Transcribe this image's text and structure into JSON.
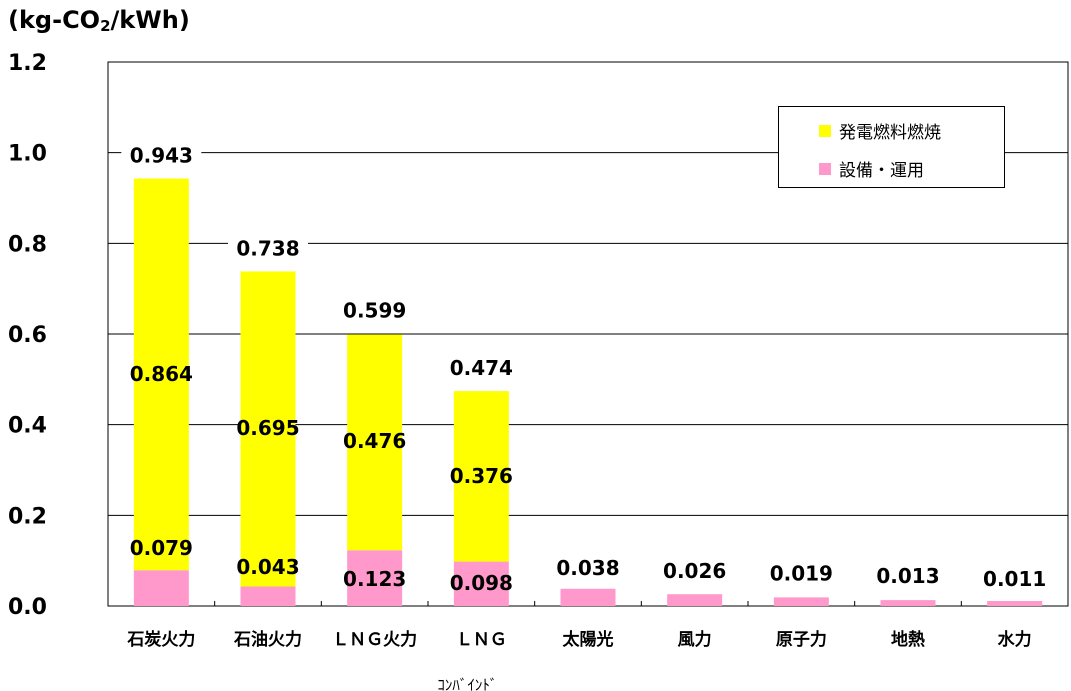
{
  "chart_data": {
    "type": "bar",
    "stacked": true,
    "title": "",
    "ylabel_prefix": "(kg-CO",
    "ylabel_sub": "2",
    "ylabel_suffix": "/kWh)",
    "xlabel": "",
    "ylim": [
      0,
      1.2
    ],
    "yticks": [
      "0.0",
      "0.2",
      "0.4",
      "0.6",
      "0.8",
      "1.0",
      "1.2"
    ],
    "yticks_values": [
      0,
      0.2,
      0.4,
      0.6,
      0.8,
      1.0,
      1.2
    ],
    "grid": true,
    "legend_position": "top-right",
    "categories": [
      "石炭火力",
      "石油火力",
      "ＬＮＧ火力",
      "ＬＮＧ",
      "太陽光",
      "風力",
      "原子力",
      "地熱",
      "水力"
    ],
    "category_sublabels": [
      "",
      "",
      "",
      "ｺﾝﾊﾞｲﾝﾄﾞ",
      "",
      "",
      "",
      "",
      ""
    ],
    "series": [
      {
        "name": "設備・運用",
        "color": "#ff99cc",
        "values": [
          0.079,
          0.043,
          0.123,
          0.098,
          0.038,
          0.026,
          0.019,
          0.013,
          0.011
        ],
        "labels": [
          "0.079",
          "0.043",
          "0.123",
          "0.098",
          "0.038",
          "0.026",
          "0.019",
          "0.013",
          "0.011"
        ]
      },
      {
        "name": "発電燃料燃焼",
        "color": "#ffff00",
        "values": [
          0.864,
          0.695,
          0.476,
          0.376,
          0,
          0,
          0,
          0,
          0
        ],
        "labels": [
          "0.864",
          "0.695",
          "0.476",
          "0.376",
          "",
          "",
          "",
          "",
          ""
        ]
      }
    ],
    "totals": [
      0.943,
      0.738,
      0.599,
      0.474,
      null,
      null,
      null,
      null,
      null
    ],
    "total_labels": [
      "0.943",
      "0.738",
      "0.599",
      "0.474",
      "",
      "",
      "",
      "",
      ""
    ]
  },
  "legend": {
    "items": [
      {
        "label": "発電燃料燃焼",
        "color": "#ffff00"
      },
      {
        "label": "設備・運用",
        "color": "#ff99cc"
      }
    ]
  }
}
